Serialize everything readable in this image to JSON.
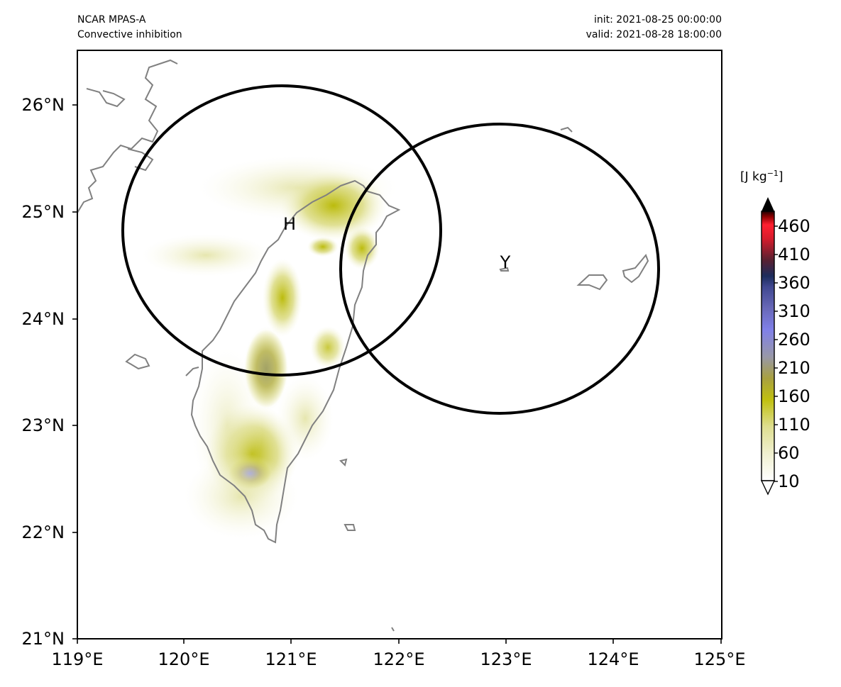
{
  "header": {
    "model": "NCAR MPAS-A",
    "variable": "Convective inhibition",
    "init": "init: 2021-08-25 00:00:00",
    "valid": "valid: 2021-08-28 18:00:00"
  },
  "map": {
    "lon_range": [
      119,
      125
    ],
    "lat_range": [
      21,
      26.5
    ],
    "lon_ticks": [
      "119°E",
      "120°E",
      "121°E",
      "122°E",
      "123°E",
      "124°E",
      "125°E"
    ],
    "lat_ticks": [
      "21°N",
      "22°N",
      "23°N",
      "24°N",
      "25°N",
      "26°N"
    ],
    "coastline_color": "#808080",
    "circle_color": "#000000",
    "markers": [
      {
        "label": "H",
        "lon": 120.9,
        "lat": 24.8
      },
      {
        "label": "Y",
        "lon": 122.95,
        "lat": 24.45
      }
    ],
    "circles": [
      {
        "center_lon": 120.9,
        "center_lat": 24.8,
        "radius_deg_lon": 1.48,
        "radius_deg_lat": 1.36
      },
      {
        "center_lon": 122.95,
        "center_lat": 24.45,
        "radius_deg_lon": 1.48,
        "radius_deg_lat": 1.36
      }
    ]
  },
  "colorbar": {
    "unit_prefix": "[J kg",
    "unit_exp": "−1",
    "unit_suffix": "]",
    "ticks": [
      "10",
      "60",
      "110",
      "160",
      "210",
      "260",
      "310",
      "360",
      "410",
      "460"
    ],
    "tick_values": [
      10,
      60,
      110,
      160,
      210,
      260,
      310,
      360,
      410,
      460
    ],
    "extend": "both",
    "colors": [
      "#ffffff",
      "#f0f0d0",
      "#dede90",
      "#c8c828",
      "#b8b800",
      "#a8a060",
      "#9898a8",
      "#8080e8",
      "#6868b8",
      "#404890",
      "#1c2c5c",
      "#5a2030",
      "#d81c2c",
      "#ff2030",
      "#8c0000",
      "#000000"
    ]
  }
}
